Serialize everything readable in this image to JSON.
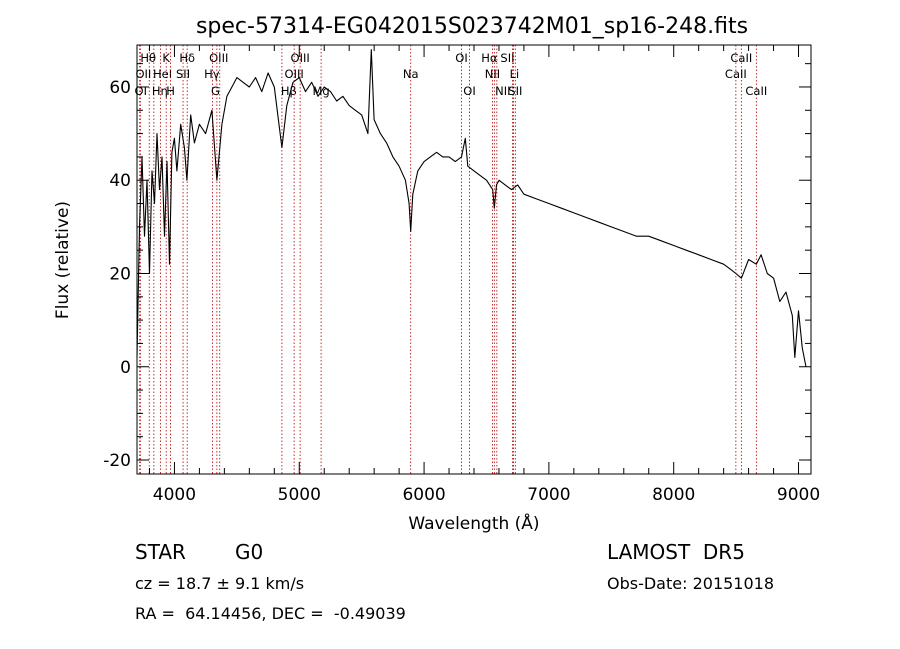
{
  "chart_data": {
    "type": "line",
    "title": "spec-57314-EG042015S023742M01_sp16-248.fits",
    "xlabel": "Wavelength (Å)",
    "ylabel": "Flux (relative)",
    "xlim": [
      3700,
      9100
    ],
    "ylim": [
      -23,
      69
    ],
    "xticks": [
      4000,
      5000,
      6000,
      7000,
      8000,
      9000
    ],
    "yticks": [
      -20,
      0,
      20,
      40,
      60
    ],
    "line_color": "#000000",
    "marker_color": "#b30000",
    "series": [
      {
        "x": [
          3700,
          3720,
          3740,
          3760,
          3780,
          3800,
          3820,
          3840,
          3860,
          3880,
          3900,
          3920,
          3940,
          3960,
          3980,
          4000,
          4020,
          4050,
          4080,
          4100,
          4130,
          4160,
          4200,
          4250,
          4300,
          4340,
          4380,
          4420,
          4460,
          4500,
          4550,
          4600,
          4650,
          4700,
          4750,
          4800,
          4861,
          4900,
          4950,
          5000,
          5050,
          5100,
          5150,
          5200,
          5250,
          5300,
          5350,
          5400,
          5450,
          5500,
          5550,
          5577,
          5600,
          5650,
          5700,
          5750,
          5800,
          5850,
          5880,
          5893,
          5910,
          5950,
          6000,
          6050,
          6100,
          6150,
          6200,
          6250,
          6300,
          6330,
          6350,
          6400,
          6450,
          6500,
          6550,
          6563,
          6580,
          6600,
          6650,
          6700,
          6750,
          6800,
          6900,
          7000,
          7100,
          7200,
          7300,
          7400,
          7500,
          7600,
          7700,
          7800,
          7900,
          8000,
          8100,
          8200,
          8300,
          8400,
          8450,
          8498,
          8542,
          8600,
          8662,
          8700,
          8750,
          8800,
          8850,
          8900,
          8950,
          8970,
          9000,
          9030,
          9060
        ],
        "y": [
          2,
          30,
          45,
          28,
          40,
          20,
          42,
          35,
          50,
          38,
          45,
          28,
          44,
          22,
          46,
          49,
          42,
          52,
          47,
          40,
          54,
          48,
          52,
          50,
          55,
          40,
          52,
          58,
          60,
          62,
          61,
          60,
          62,
          59,
          63,
          60,
          47,
          56,
          61,
          62,
          59,
          61,
          58,
          60,
          59,
          57,
          58,
          56,
          55,
          54,
          50,
          68,
          53,
          50,
          48,
          45,
          43,
          40,
          35,
          29,
          37,
          42,
          44,
          45,
          46,
          45,
          45,
          44,
          45,
          49,
          43,
          42,
          41,
          40,
          38,
          34,
          39,
          40,
          39,
          38,
          39,
          37,
          36,
          35,
          34,
          33,
          32,
          31,
          30,
          29,
          28,
          28,
          27,
          26,
          25,
          24,
          23,
          22,
          21,
          20,
          19,
          23,
          22,
          24,
          20,
          19,
          14,
          16,
          11,
          2,
          12,
          4,
          0
        ]
      }
    ],
    "lines": [
      {
        "name": "Hθ",
        "x": 3798,
        "row": 0,
        "dx": -1
      },
      {
        "name": "OII",
        "x": 3727,
        "row": 1,
        "dx": 3
      },
      {
        "name": "OI",
        "x": 3722,
        "row": 2,
        "dx": 1
      },
      {
        "name": "K",
        "x": 3934,
        "row": 0,
        "dx": 0
      },
      {
        "name": "HeI",
        "x": 3889,
        "row": 1,
        "dx": 2
      },
      {
        "name": "Hη",
        "x": 3835,
        "row": 2,
        "dx": 6
      },
      {
        "name": "H",
        "x": 3969,
        "row": 2,
        "dx": 0
      },
      {
        "name": "Hδ",
        "x": 4102,
        "row": 0,
        "dx": 0
      },
      {
        "name": "SII",
        "x": 4069,
        "row": 1,
        "dx": 0
      },
      {
        "name": "OIII",
        "x": 4363,
        "row": 0,
        "dx": -1
      },
      {
        "name": "Hγ",
        "x": 4340,
        "row": 1,
        "dx": -5
      },
      {
        "name": "G",
        "x": 4305,
        "row": 2,
        "dx": 3
      },
      {
        "name": "Hβ",
        "x": 4861,
        "row": 2,
        "dx": 7
      },
      {
        "name": "OIII",
        "x": 5007,
        "row": 0,
        "dx": 0
      },
      {
        "name": "OIII",
        "x": 4959,
        "row": 1,
        "dx": 0
      },
      {
        "name": "Mg",
        "x": 5175,
        "row": 2,
        "dx": 0
      },
      {
        "name": "Na",
        "x": 5893,
        "row": 1,
        "dx": 0
      },
      {
        "name": "OI",
        "x": 6300,
        "row": 0,
        "dx": 0
      },
      {
        "name": "OI",
        "x": 6364,
        "row": 2,
        "dx": 0
      },
      {
        "name": "Hα",
        "x": 6563,
        "row": 0,
        "dx": -5
      },
      {
        "name": "NII",
        "x": 6548,
        "row": 1,
        "dx": 0
      },
      {
        "name": "NII",
        "x": 6583,
        "row": 2,
        "dx": 6
      },
      {
        "name": "SII",
        "x": 6716,
        "row": 0,
        "dx": -6
      },
      {
        "name": "Li",
        "x": 6708,
        "row": 1,
        "dx": 2
      },
      {
        "name": "SII",
        "x": 6731,
        "row": 2,
        "dx": 0
      },
      {
        "name": "CaII",
        "x": 8542,
        "row": 0,
        "dx": 0
      },
      {
        "name": "CaII",
        "x": 8498,
        "row": 1,
        "dx": 0
      },
      {
        "name": "CaII",
        "x": 8662,
        "row": 2,
        "dx": 0
      }
    ]
  },
  "info": {
    "object_type": "STAR",
    "subclass": "G0",
    "survey": "LAMOST  DR5",
    "cz": "cz = 18.7 ± 9.1 km/s",
    "obs_date": "Obs-Date: 20151018",
    "coords": "RA =  64.14456, DEC =  -0.49039"
  }
}
